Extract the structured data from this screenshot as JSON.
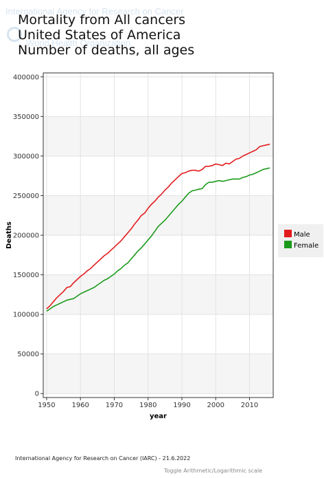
{
  "watermark": {
    "org": "International Agency for Research on Cancer",
    "sub": "World Health Organization"
  },
  "titles": [
    "Mortality from All cancers",
    "United States of America",
    "Number of deaths, all ages"
  ],
  "footer": {
    "credit": "International Agency for Research on Cancer (IARC) - 21.6.2022",
    "toggle": "Toggle Arithmetic/Logarithmic scale"
  },
  "chart_data": {
    "type": "line",
    "title": "Mortality from All cancers United States of America Number of deaths, all ages",
    "xlabel": "year",
    "ylabel": "Deaths",
    "xlim": [
      1949,
      2017
    ],
    "ylim": [
      -5000,
      405000
    ],
    "xticks": [
      1950,
      1960,
      1970,
      1980,
      1990,
      2000,
      2010
    ],
    "yticks": [
      0,
      50000,
      100000,
      150000,
      200000,
      250000,
      300000,
      350000,
      400000
    ],
    "grid": true,
    "legend_position": "right",
    "colors": {
      "Male": "#e31a1c",
      "Female": "#1a9a1a"
    },
    "x": [
      1950,
      1951,
      1952,
      1953,
      1954,
      1955,
      1956,
      1957,
      1958,
      1959,
      1960,
      1961,
      1962,
      1963,
      1964,
      1965,
      1966,
      1967,
      1968,
      1969,
      1970,
      1971,
      1972,
      1973,
      1974,
      1975,
      1976,
      1977,
      1978,
      1979,
      1980,
      1981,
      1982,
      1983,
      1984,
      1985,
      1986,
      1987,
      1988,
      1989,
      1990,
      1991,
      1992,
      1993,
      1994,
      1995,
      1996,
      1997,
      1998,
      1999,
      2000,
      2001,
      2002,
      2003,
      2004,
      2005,
      2006,
      2007,
      2008,
      2009,
      2010,
      2011,
      2012,
      2013,
      2014,
      2015,
      2016
    ],
    "series": [
      {
        "name": "Male",
        "values": [
          107000,
          111000,
          116000,
          121000,
          125000,
          129000,
          134000,
          135000,
          140000,
          144000,
          148000,
          151000,
          155000,
          158000,
          162000,
          166000,
          170000,
          174000,
          177000,
          181000,
          185000,
          189000,
          193000,
          198000,
          203000,
          208000,
          214000,
          219000,
          225000,
          228000,
          234000,
          239000,
          243000,
          248000,
          252000,
          257000,
          261000,
          266000,
          270000,
          274000,
          278000,
          279000,
          281000,
          282000,
          282000,
          281000,
          283000,
          287000,
          287000,
          288000,
          290000,
          289000,
          288000,
          291000,
          290000,
          293000,
          296000,
          297000,
          300000,
          302000,
          304000,
          306000,
          308000,
          312000,
          313000,
          314000,
          315000
        ]
      },
      {
        "name": "Female",
        "values": [
          104000,
          107000,
          110000,
          112000,
          114000,
          116000,
          118000,
          119000,
          120000,
          123000,
          126000,
          128000,
          130000,
          132000,
          134000,
          137000,
          140000,
          143000,
          145000,
          148000,
          151000,
          155000,
          158000,
          162000,
          165000,
          170000,
          175000,
          180000,
          184000,
          189000,
          194000,
          199000,
          205000,
          211000,
          215000,
          219000,
          224000,
          229000,
          234000,
          239000,
          243000,
          248000,
          253000,
          256000,
          257000,
          258000,
          259000,
          264000,
          267000,
          267000,
          268000,
          269000,
          268000,
          269000,
          270000,
          271000,
          271000,
          271000,
          273000,
          274000,
          276000,
          277000,
          279000,
          281000,
          283000,
          284000,
          285000
        ]
      }
    ]
  }
}
